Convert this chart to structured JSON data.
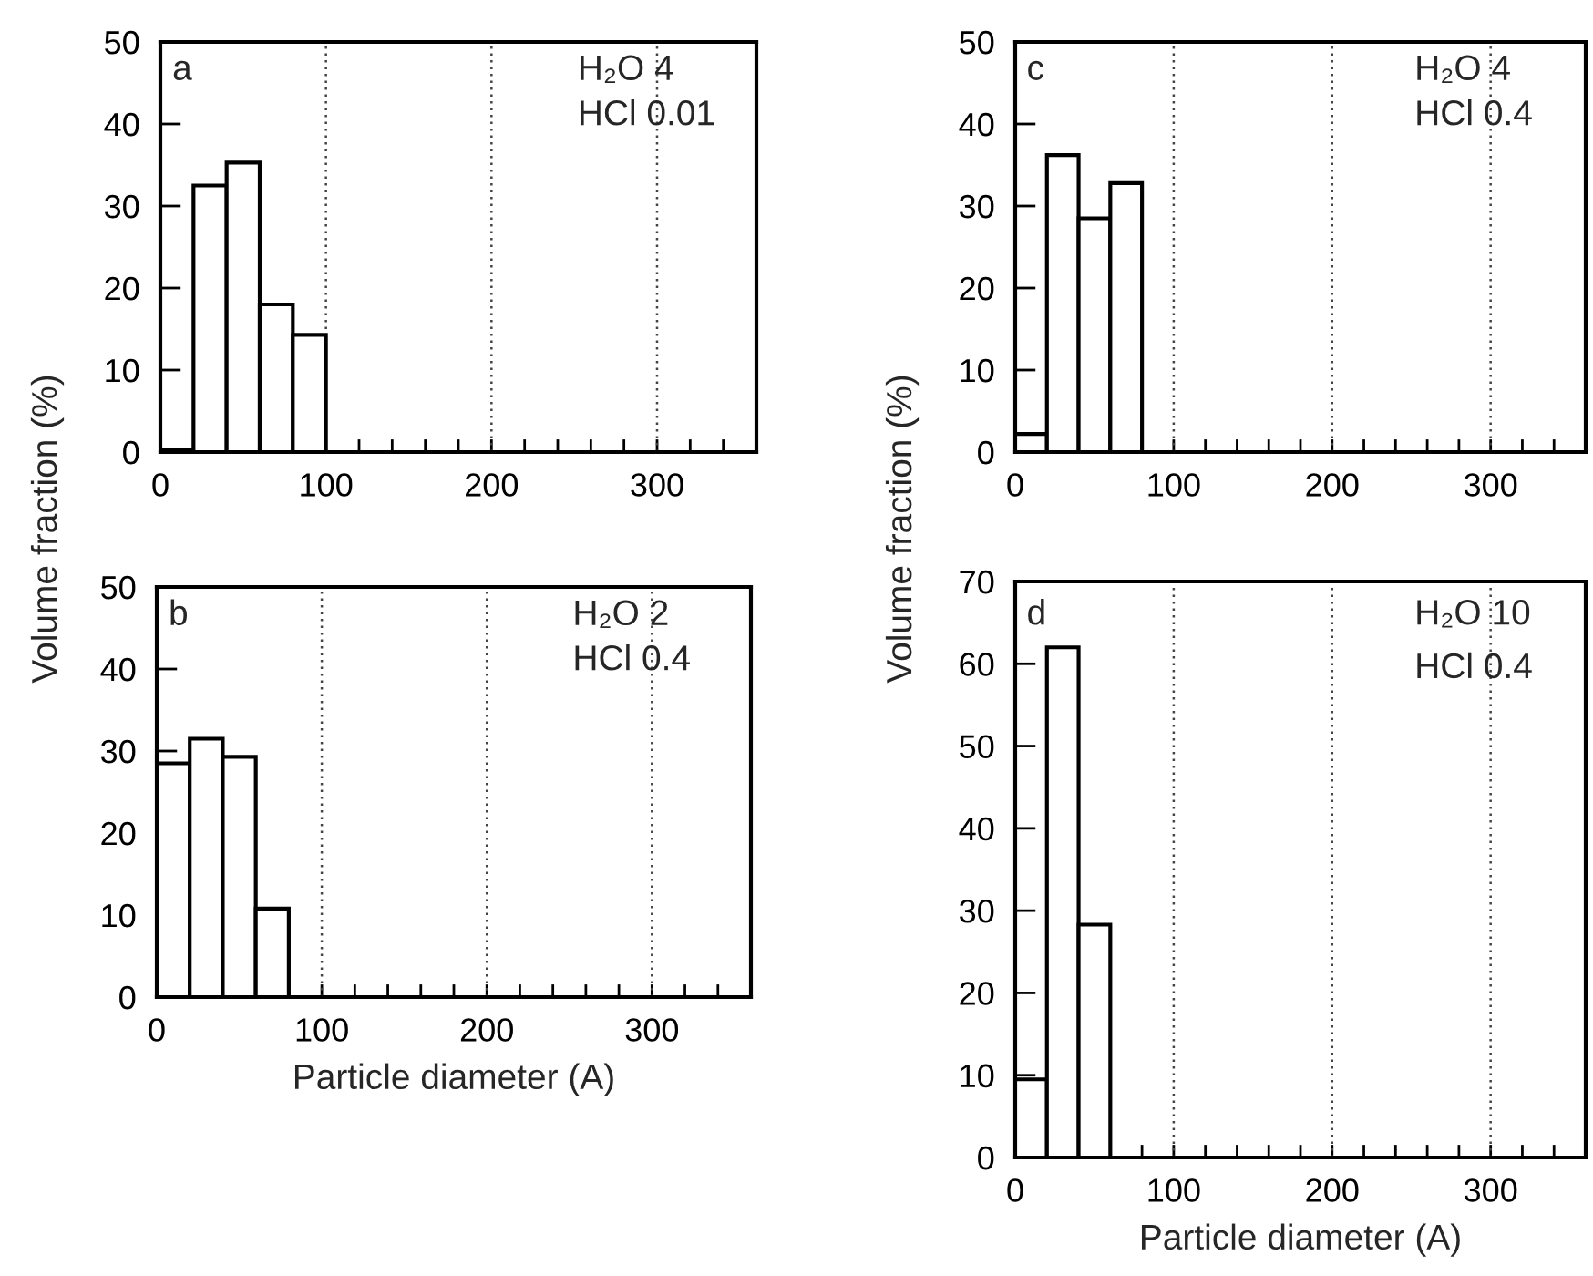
{
  "chart_data": [
    {
      "type": "histogram",
      "ylabel": "Volume fraction (%)",
      "annotations": [
        "a",
        "H₂O 4",
        "HCl 0.01"
      ],
      "bins": [
        0,
        20,
        40,
        60,
        80,
        100
      ],
      "values": [
        0.3,
        32.5,
        35.3,
        18,
        14.3
      ],
      "color": "#ffffff",
      "xlim": [
        0,
        360
      ],
      "ylim": [
        0,
        50
      ],
      "xticks": [
        0,
        {
          "value": 20,
          "label": null
        },
        {
          "value": 40,
          "label": null
        },
        {
          "value": 60,
          "label": null
        },
        {
          "value": 80,
          "label": null
        },
        100,
        {
          "value": 120,
          "label": null
        },
        {
          "value": 140,
          "label": null
        },
        {
          "value": 160,
          "label": null
        },
        {
          "value": 180,
          "label": null
        },
        200,
        {
          "value": 220,
          "label": null
        },
        {
          "value": 240,
          "label": null
        },
        {
          "value": 260,
          "label": null
        },
        {
          "value": 280,
          "label": null
        },
        300,
        {
          "value": 320,
          "label": null
        },
        {
          "value": 340,
          "label": null
        }
      ],
      "yticks": [
        0,
        10,
        20,
        30,
        40,
        50
      ],
      "grid": "x"
    },
    {
      "type": "histogram",
      "ylabel": "Volume fraction (%)",
      "annotations": [
        "c",
        "H₂O 4",
        "HCl 0.4"
      ],
      "bins": [
        0,
        20,
        40,
        60,
        80
      ],
      "values": [
        2.2,
        36.2,
        28.5,
        32.8
      ],
      "color": "#ffffff",
      "xlim": [
        0,
        360
      ],
      "ylim": [
        0,
        50
      ],
      "xticks": [
        0,
        {
          "value": 20,
          "label": null
        },
        {
          "value": 40,
          "label": null
        },
        {
          "value": 60,
          "label": null
        },
        {
          "value": 80,
          "label": null
        },
        100,
        {
          "value": 120,
          "label": null
        },
        {
          "value": 140,
          "label": null
        },
        {
          "value": 160,
          "label": null
        },
        {
          "value": 180,
          "label": null
        },
        200,
        {
          "value": 220,
          "label": null
        },
        {
          "value": 240,
          "label": null
        },
        {
          "value": 260,
          "label": null
        },
        {
          "value": 280,
          "label": null
        },
        300,
        {
          "value": 320,
          "label": null
        },
        {
          "value": 340,
          "label": null
        }
      ],
      "yticks": [
        0,
        10,
        20,
        30,
        40,
        50
      ],
      "grid": "x"
    },
    {
      "type": "histogram",
      "xlabel": "Particle diameter (A)",
      "annotations": [
        "b",
        "H₂O 2",
        "HCl 0.4"
      ],
      "bins": [
        0,
        20,
        40,
        60,
        80
      ],
      "values": [
        28.5,
        31.5,
        29.3,
        10.8
      ],
      "color": "#ffffff",
      "xlim": [
        0,
        360
      ],
      "ylim": [
        0,
        50
      ],
      "xticks": [
        0,
        {
          "value": 20,
          "label": null
        },
        {
          "value": 40,
          "label": null
        },
        {
          "value": 60,
          "label": null
        },
        {
          "value": 80,
          "label": null
        },
        100,
        {
          "value": 120,
          "label": null
        },
        {
          "value": 140,
          "label": null
        },
        {
          "value": 160,
          "label": null
        },
        {
          "value": 180,
          "label": null
        },
        200,
        {
          "value": 220,
          "label": null
        },
        {
          "value": 240,
          "label": null
        },
        {
          "value": 260,
          "label": null
        },
        {
          "value": 280,
          "label": null
        },
        300,
        {
          "value": 320,
          "label": null
        },
        {
          "value": 340,
          "label": null
        }
      ],
      "yticks": [
        0,
        10,
        20,
        30,
        40,
        50
      ],
      "grid": "x"
    },
    {
      "type": "histogram",
      "xlabel": "Particle diameter (A)",
      "annotations": [
        "d",
        "H₂O 10",
        "HCl 0.4"
      ],
      "bins": [
        0,
        20,
        40,
        60
      ],
      "values": [
        9.5,
        62,
        28.3
      ],
      "color": "#ffffff",
      "xlim": [
        0,
        360
      ],
      "ylim": [
        0,
        70
      ],
      "xticks": [
        0,
        {
          "value": 20,
          "label": null
        },
        {
          "value": 40,
          "label": null
        },
        {
          "value": 60,
          "label": null
        },
        {
          "value": 80,
          "label": null
        },
        100,
        {
          "value": 120,
          "label": null
        },
        {
          "value": 140,
          "label": null
        },
        {
          "value": 160,
          "label": null
        },
        {
          "value": 180,
          "label": null
        },
        200,
        {
          "value": 220,
          "label": null
        },
        {
          "value": 240,
          "label": null
        },
        {
          "value": 260,
          "label": null
        },
        {
          "value": 280,
          "label": null
        },
        300,
        {
          "value": 320,
          "label": null
        },
        {
          "value": 340,
          "label": null
        }
      ],
      "yticks": [
        0,
        10,
        20,
        30,
        40,
        50,
        60,
        70
      ],
      "grid": "x"
    }
  ]
}
